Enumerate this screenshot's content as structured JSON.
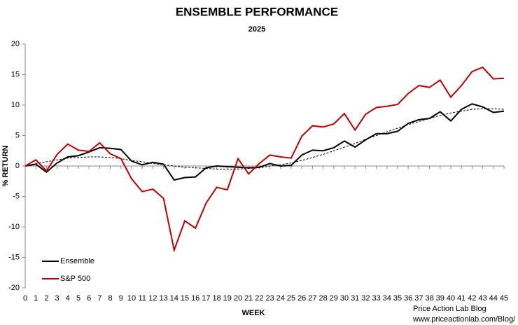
{
  "chart_data": {
    "type": "line",
    "title": "ENSEMBLE PERFORMANCE",
    "subtitle": "2025",
    "x_label": "WEEK",
    "y_label": "% RETURN",
    "annotations": [
      "Price Action Lab Blog",
      "www.priceactionlab.com/Blog/"
    ],
    "x": [
      0,
      1,
      2,
      3,
      4,
      5,
      6,
      7,
      8,
      9,
      10,
      11,
      12,
      13,
      14,
      15,
      16,
      17,
      18,
      19,
      20,
      21,
      22,
      23,
      24,
      25,
      26,
      27,
      28,
      29,
      30,
      31,
      32,
      33,
      34,
      35,
      36,
      37,
      38,
      39,
      40,
      41,
      42,
      43,
      44,
      45
    ],
    "xlim": [
      0,
      45
    ],
    "xticks": [
      0,
      1,
      2,
      3,
      4,
      5,
      6,
      7,
      8,
      9,
      10,
      11,
      12,
      13,
      14,
      15,
      16,
      17,
      18,
      19,
      20,
      21,
      22,
      23,
      24,
      25,
      26,
      27,
      28,
      29,
      30,
      31,
      32,
      33,
      34,
      35,
      36,
      37,
      38,
      39,
      40,
      41,
      42,
      43,
      44,
      45
    ],
    "ylim": [
      -20,
      20
    ],
    "yticks": [
      -20,
      -15,
      -10,
      -5,
      0,
      5,
      10,
      15,
      20
    ],
    "legend": "lower left",
    "series": [
      {
        "name": "Ensemble",
        "color": "#000000",
        "values": [
          0,
          0.3,
          -1,
          0.5,
          1.5,
          1.7,
          2.3,
          3.0,
          2.9,
          2.7,
          0.8,
          0.2,
          0.6,
          0.3,
          -2.3,
          -1.9,
          -1.8,
          -0.3,
          0,
          -0.1,
          -0.2,
          -0.3,
          -0.2,
          0.4,
          0,
          0.1,
          1.8,
          2.6,
          2.5,
          3.0,
          4.1,
          3.1,
          4.3,
          5.3,
          5.3,
          5.7,
          7.0,
          7.6,
          7.8,
          8.9,
          7.4,
          9.3,
          10.2,
          9.7,
          8.8,
          9.0
        ]
      },
      {
        "name": "S&P 500",
        "color": "#c00000",
        "values": [
          0,
          1.0,
          -0.8,
          1.9,
          3.6,
          2.6,
          2.4,
          3.8,
          2.0,
          1.2,
          -2.1,
          -4.2,
          -3.8,
          -5.3,
          -13.8,
          -9.0,
          -10.2,
          -6.1,
          -3.5,
          -3.9,
          1.2,
          -1.3,
          0.4,
          1.8,
          1.5,
          1.3,
          4.9,
          6.6,
          6.4,
          6.9,
          8.6,
          5.9,
          8.5,
          9.6,
          9.8,
          10.1,
          11.9,
          13.2,
          12.9,
          14.1,
          11.3,
          13.2,
          15.5,
          16.2,
          14.3,
          14.4
        ]
      }
    ],
    "trendline": {
      "color": "#000000",
      "values": [
        0,
        0.4,
        0.7,
        1.0,
        1.3,
        1.4,
        1.5,
        1.5,
        1.4,
        1.2,
        0.9,
        0.7,
        0.4,
        0.2,
        0,
        -0.2,
        -0.3,
        -0.4,
        -0.5,
        -0.5,
        -0.5,
        -0.4,
        -0.3,
        0,
        0.2,
        0.5,
        0.9,
        1.4,
        1.9,
        2.5,
        3.1,
        3.7,
        4.4,
        5.0,
        5.6,
        6.2,
        6.8,
        7.3,
        7.8,
        8.3,
        8.7,
        9.0,
        9.3,
        9.4,
        9.4,
        9.3
      ]
    }
  }
}
